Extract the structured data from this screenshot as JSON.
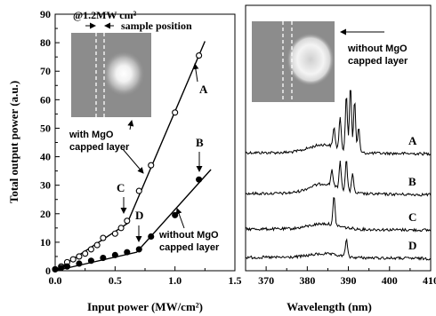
{
  "chart_data": [
    {
      "type": "line",
      "xlabel": "Input power (MW/cm²)",
      "ylabel": "Total output power (a.u.)",
      "xlim": [
        0.0,
        1.5
      ],
      "ylim": [
        0,
        90
      ],
      "xticks": [
        "0.0",
        "0.5",
        "1.0",
        "1.5"
      ],
      "yticks": [
        "0",
        "10",
        "20",
        "30",
        "40",
        "50",
        "60",
        "70",
        "80",
        "90"
      ],
      "grid": false,
      "series": [
        {
          "name": "with MgO capped layer",
          "marker": "open-circle",
          "x": [
            0.0,
            0.05,
            0.1,
            0.15,
            0.2,
            0.25,
            0.3,
            0.35,
            0.4,
            0.5,
            0.55,
            0.6,
            0.7,
            0.8,
            1.0,
            1.2
          ],
          "y": [
            0.5,
            1.5,
            3,
            4,
            5,
            6,
            7.5,
            9,
            11.5,
            13,
            15,
            17.5,
            28,
            37,
            55.5,
            75.5
          ],
          "fit": [
            [
              0.0,
              0.0
            ],
            [
              0.6,
              16.5
            ],
            [
              1.25,
              80.5
            ]
          ]
        },
        {
          "name": "without MgO capped layer",
          "marker": "filled-circle",
          "x": [
            0.0,
            0.05,
            0.1,
            0.2,
            0.3,
            0.4,
            0.5,
            0.6,
            0.7,
            0.8,
            1.0,
            1.2
          ],
          "y": [
            0.5,
            1,
            1.5,
            2.5,
            3.5,
            4.5,
            5.5,
            6.5,
            7.5,
            12,
            19.5,
            32
          ],
          "fit": [
            [
              0.0,
              0.0
            ],
            [
              0.68,
              6.5
            ],
            [
              1.3,
              35.5
            ]
          ]
        }
      ],
      "annotations": {
        "point_labels": [
          "A",
          "B",
          "C",
          "D"
        ],
        "intensity_label": "@1.2MW cm²",
        "sample_position_label": "sample position",
        "with_line1": "with MgO",
        "with_line2": "capped layer",
        "without_line1": "without MgO",
        "without_line2": "capped layer"
      }
    },
    {
      "type": "line",
      "xlabel": "Wavelength (nm)",
      "xlim": [
        365,
        410
      ],
      "xticks": [
        "370",
        "380",
        "390",
        "400",
        "410"
      ],
      "grid": false,
      "series": [
        {
          "name": "A",
          "peaks_nm": [
            386.5,
            388.0,
            389.5,
            390.5,
            391.5,
            392.5
          ]
        },
        {
          "name": "B",
          "peaks_nm": [
            386.0,
            388.0,
            389.5,
            391.0
          ]
        },
        {
          "name": "C",
          "peaks_nm": [
            386.5
          ]
        },
        {
          "name": "D",
          "peaks_nm": [
            389.5
          ]
        }
      ],
      "annotations": {
        "without_line1": "without MgO",
        "without_line2": "capped layer"
      }
    }
  ]
}
